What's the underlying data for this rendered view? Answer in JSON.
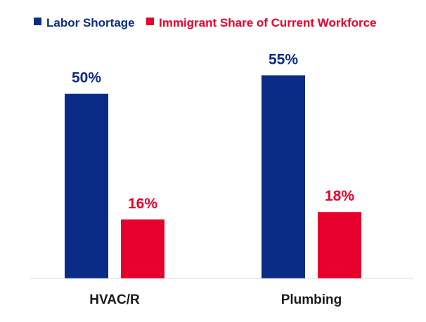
{
  "chart_data": {
    "type": "bar",
    "categories": [
      "HVAC/R",
      "Plumbing"
    ],
    "series": [
      {
        "name": "Labor Shortage",
        "values": [
          50,
          55
        ],
        "labels": [
          "50%",
          "55%"
        ],
        "color": "#0b2c86"
      },
      {
        "name": "Immigrant Share of Current Workforce",
        "values": [
          16,
          18
        ],
        "labels": [
          "16%",
          "18%"
        ],
        "color": "#e8002d"
      }
    ],
    "ylim": [
      0,
      64
    ],
    "grid": false,
    "legend_position": "top"
  }
}
